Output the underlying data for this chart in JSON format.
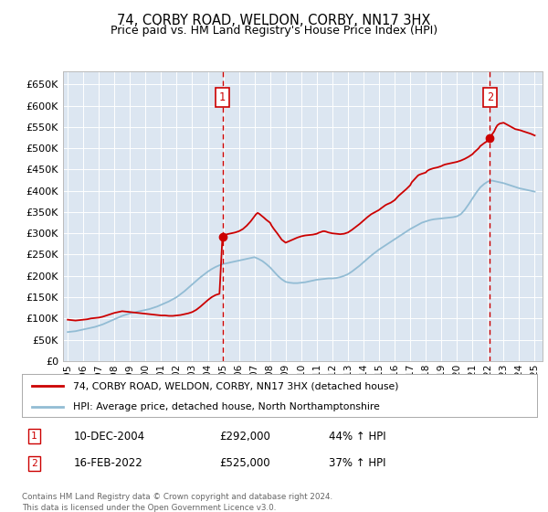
{
  "title": "74, CORBY ROAD, WELDON, CORBY, NN17 3HX",
  "subtitle": "Price paid vs. HM Land Registry's House Price Index (HPI)",
  "ylim": [
    0,
    680000
  ],
  "xlim_start": 1994.7,
  "xlim_end": 2025.5,
  "yticks": [
    0,
    50000,
    100000,
    150000,
    200000,
    250000,
    300000,
    350000,
    400000,
    450000,
    500000,
    550000,
    600000,
    650000
  ],
  "ytick_labels": [
    "£0",
    "£50K",
    "£100K",
    "£150K",
    "£200K",
    "£250K",
    "£300K",
    "£350K",
    "£400K",
    "£450K",
    "£500K",
    "£550K",
    "£600K",
    "£650K"
  ],
  "xtick_years": [
    1995,
    1996,
    1997,
    1998,
    1999,
    2000,
    2001,
    2002,
    2003,
    2004,
    2005,
    2006,
    2007,
    2008,
    2009,
    2010,
    2011,
    2012,
    2013,
    2014,
    2015,
    2016,
    2017,
    2018,
    2019,
    2020,
    2021,
    2022,
    2023,
    2024,
    2025
  ],
  "plot_bg_color": "#dce6f1",
  "fig_bg_color": "#ffffff",
  "grid_color": "#ffffff",
  "red_line_color": "#cc0000",
  "blue_line_color": "#92bcd4",
  "event1_x": 2004.94,
  "event1_y": 292000,
  "event1_label": "1",
  "event2_x": 2022.12,
  "event2_y": 525000,
  "event2_label": "2",
  "dashed_color": "#cc0000",
  "legend_line1": "74, CORBY ROAD, WELDON, CORBY, NN17 3HX (detached house)",
  "legend_line2": "HPI: Average price, detached house, North Northamptonshire",
  "annotation1_date": "10-DEC-2004",
  "annotation1_price": "£292,000",
  "annotation1_hpi": "44% ↑ HPI",
  "annotation2_date": "16-FEB-2022",
  "annotation2_price": "£525,000",
  "annotation2_hpi": "37% ↑ HPI",
  "footer": "Contains HM Land Registry data © Crown copyright and database right 2024.\nThis data is licensed under the Open Government Licence v3.0.",
  "red_x": [
    1995.0,
    1995.25,
    1995.5,
    1995.75,
    1996.0,
    1996.25,
    1996.5,
    1996.75,
    1997.0,
    1997.25,
    1997.5,
    1997.75,
    1998.0,
    1998.25,
    1998.5,
    1998.75,
    1999.0,
    1999.25,
    1999.5,
    1999.75,
    2000.0,
    2000.25,
    2000.5,
    2000.75,
    2001.0,
    2001.25,
    2001.5,
    2001.75,
    2002.0,
    2002.25,
    2002.5,
    2002.75,
    2003.0,
    2003.25,
    2003.5,
    2003.75,
    2004.0,
    2004.25,
    2004.5,
    2004.75,
    2004.94,
    2005.1,
    2005.25,
    2005.5,
    2005.75,
    2006.0,
    2006.25,
    2006.5,
    2006.75,
    2007.0,
    2007.1,
    2007.2,
    2007.3,
    2007.4,
    2007.5,
    2007.6,
    2007.75,
    2008.0,
    2008.1,
    2008.25,
    2008.5,
    2008.75,
    2009.0,
    2009.25,
    2009.5,
    2009.75,
    2010.0,
    2010.25,
    2010.5,
    2010.75,
    2011.0,
    2011.1,
    2011.25,
    2011.4,
    2011.5,
    2011.6,
    2011.75,
    2012.0,
    2012.25,
    2012.5,
    2012.75,
    2013.0,
    2013.25,
    2013.5,
    2013.75,
    2014.0,
    2014.25,
    2014.5,
    2014.75,
    2015.0,
    2015.1,
    2015.25,
    2015.4,
    2015.5,
    2015.75,
    2016.0,
    2016.1,
    2016.25,
    2016.5,
    2016.75,
    2017.0,
    2017.1,
    2017.25,
    2017.4,
    2017.5,
    2017.6,
    2017.75,
    2018.0,
    2018.1,
    2018.25,
    2018.5,
    2018.75,
    2019.0,
    2019.1,
    2019.25,
    2019.5,
    2019.75,
    2020.0,
    2020.25,
    2020.5,
    2020.75,
    2021.0,
    2021.1,
    2021.25,
    2021.4,
    2021.5,
    2021.75,
    2022.0,
    2022.12,
    2022.25,
    2022.4,
    2022.5,
    2022.6,
    2022.75,
    2023.0,
    2023.1,
    2023.25,
    2023.4,
    2023.5,
    2023.6,
    2023.75,
    2024.0,
    2024.1,
    2024.25,
    2024.5,
    2024.75,
    2025.0
  ],
  "red_y": [
    97000,
    96000,
    95000,
    96000,
    97000,
    98000,
    100000,
    101000,
    102000,
    104000,
    107000,
    110000,
    113000,
    115000,
    117000,
    116000,
    115000,
    114000,
    113000,
    112000,
    111000,
    110000,
    109000,
    108000,
    107000,
    107000,
    106000,
    106000,
    107000,
    108000,
    110000,
    112000,
    115000,
    120000,
    127000,
    135000,
    143000,
    150000,
    155000,
    158000,
    292000,
    296000,
    298000,
    300000,
    302000,
    305000,
    310000,
    318000,
    328000,
    340000,
    345000,
    348000,
    346000,
    343000,
    340000,
    337000,
    332000,
    325000,
    318000,
    310000,
    298000,
    285000,
    278000,
    282000,
    286000,
    290000,
    293000,
    295000,
    296000,
    297000,
    299000,
    301000,
    303000,
    305000,
    305000,
    304000,
    302000,
    300000,
    299000,
    298000,
    299000,
    302000,
    308000,
    315000,
    322000,
    330000,
    338000,
    345000,
    350000,
    355000,
    358000,
    362000,
    366000,
    368000,
    372000,
    378000,
    382000,
    388000,
    396000,
    404000,
    413000,
    420000,
    426000,
    432000,
    436000,
    438000,
    440000,
    443000,
    447000,
    450000,
    453000,
    455000,
    458000,
    460000,
    462000,
    464000,
    466000,
    468000,
    471000,
    475000,
    480000,
    486000,
    490000,
    495000,
    500000,
    505000,
    512000,
    518000,
    525000,
    532000,
    540000,
    548000,
    554000,
    558000,
    560000,
    558000,
    555000,
    552000,
    550000,
    548000,
    545000,
    543000,
    542000,
    540000,
    537000,
    534000,
    530000
  ],
  "blue_x": [
    1995.0,
    1995.25,
    1995.5,
    1995.75,
    1996.0,
    1996.25,
    1996.5,
    1996.75,
    1997.0,
    1997.25,
    1997.5,
    1997.75,
    1998.0,
    1998.25,
    1998.5,
    1998.75,
    1999.0,
    1999.25,
    1999.5,
    1999.75,
    2000.0,
    2000.25,
    2000.5,
    2000.75,
    2001.0,
    2001.25,
    2001.5,
    2001.75,
    2002.0,
    2002.25,
    2002.5,
    2002.75,
    2003.0,
    2003.25,
    2003.5,
    2003.75,
    2004.0,
    2004.25,
    2004.5,
    2004.75,
    2005.0,
    2005.25,
    2005.5,
    2005.75,
    2006.0,
    2006.25,
    2006.5,
    2006.75,
    2007.0,
    2007.25,
    2007.5,
    2007.75,
    2008.0,
    2008.25,
    2008.5,
    2008.75,
    2009.0,
    2009.25,
    2009.5,
    2009.75,
    2010.0,
    2010.25,
    2010.5,
    2010.75,
    2011.0,
    2011.25,
    2011.5,
    2011.75,
    2012.0,
    2012.25,
    2012.5,
    2012.75,
    2013.0,
    2013.25,
    2013.5,
    2013.75,
    2014.0,
    2014.25,
    2014.5,
    2014.75,
    2015.0,
    2015.25,
    2015.5,
    2015.75,
    2016.0,
    2016.25,
    2016.5,
    2016.75,
    2017.0,
    2017.25,
    2017.5,
    2017.75,
    2018.0,
    2018.25,
    2018.5,
    2018.75,
    2019.0,
    2019.25,
    2019.5,
    2019.75,
    2020.0,
    2020.25,
    2020.5,
    2020.75,
    2021.0,
    2021.25,
    2021.5,
    2021.75,
    2022.0,
    2022.25,
    2022.5,
    2022.75,
    2023.0,
    2023.25,
    2023.5,
    2023.75,
    2024.0,
    2024.25,
    2024.5,
    2024.75,
    2025.0
  ],
  "blue_y": [
    68000,
    69000,
    70000,
    72000,
    74000,
    76000,
    78000,
    80000,
    83000,
    86000,
    90000,
    94000,
    98000,
    102000,
    106000,
    109000,
    112000,
    114000,
    116000,
    118000,
    120000,
    122000,
    125000,
    128000,
    132000,
    136000,
    140000,
    145000,
    150000,
    157000,
    164000,
    172000,
    180000,
    188000,
    196000,
    203000,
    210000,
    216000,
    221000,
    225000,
    228000,
    230000,
    232000,
    234000,
    236000,
    238000,
    240000,
    242000,
    244000,
    240000,
    235000,
    228000,
    220000,
    210000,
    200000,
    192000,
    186000,
    184000,
    183000,
    183000,
    184000,
    185000,
    187000,
    189000,
    191000,
    192000,
    193000,
    194000,
    194000,
    195000,
    197000,
    200000,
    204000,
    210000,
    217000,
    224000,
    232000,
    240000,
    248000,
    255000,
    262000,
    268000,
    274000,
    280000,
    286000,
    292000,
    298000,
    304000,
    310000,
    315000,
    320000,
    325000,
    328000,
    331000,
    333000,
    334000,
    335000,
    336000,
    337000,
    338000,
    340000,
    345000,
    355000,
    368000,
    382000,
    396000,
    408000,
    416000,
    422000,
    424000,
    422000,
    420000,
    418000,
    415000,
    412000,
    409000,
    406000,
    404000,
    402000,
    400000,
    398000
  ]
}
